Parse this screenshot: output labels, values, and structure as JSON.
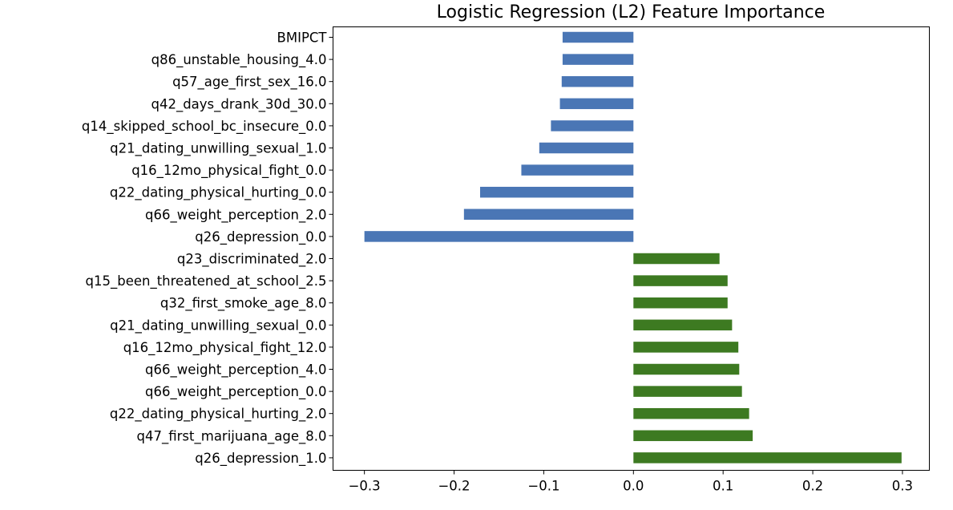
{
  "chart_data": {
    "type": "bar",
    "orientation": "horizontal",
    "title": "Logistic Regression (L2) Feature Importance",
    "xlabel": "",
    "ylabel": "",
    "xlim": [
      -0.335,
      0.33
    ],
    "xticks": [
      {
        "value": -0.3,
        "label": "−0.3"
      },
      {
        "value": -0.2,
        "label": "−0.2"
      },
      {
        "value": -0.1,
        "label": "−0.1"
      },
      {
        "value": 0.0,
        "label": "0.0"
      },
      {
        "value": 0.1,
        "label": "0.1"
      },
      {
        "value": 0.2,
        "label": "0.2"
      },
      {
        "value": 0.3,
        "label": "0.3"
      }
    ],
    "grid": false,
    "colors": {
      "negative": "#4a76b5",
      "positive": "#3d7a21"
    },
    "categories": [
      "BMIPCT",
      "q86_unstable_housing_4.0",
      "q57_age_first_sex_16.0",
      "q42_days_drank_30d_30.0",
      "q14_skipped_school_bc_insecure_0.0",
      "q21_dating_unwilling_sexual_1.0",
      "q16_12mo_physical_fight_0.0",
      "q22_dating_physical_hurting_0.0",
      "q66_weight_perception_2.0",
      "q26_depression_0.0",
      "q23_discriminated_2.0",
      "q15_been_threatened_at_school_2.5",
      "q32_first_smoke_age_8.0",
      "q21_dating_unwilling_sexual_0.0",
      "q16_12mo_physical_fight_12.0",
      "q66_weight_perception_4.0",
      "q66_weight_perception_0.0",
      "q22_dating_physical_hurting_2.0",
      "q47_first_marijuana_age_8.0",
      "q26_depression_1.0"
    ],
    "values": [
      -0.079,
      -0.079,
      -0.08,
      -0.082,
      -0.092,
      -0.105,
      -0.125,
      -0.171,
      -0.189,
      -0.3,
      0.096,
      0.105,
      0.105,
      0.11,
      0.117,
      0.118,
      0.121,
      0.129,
      0.133,
      0.299
    ]
  }
}
